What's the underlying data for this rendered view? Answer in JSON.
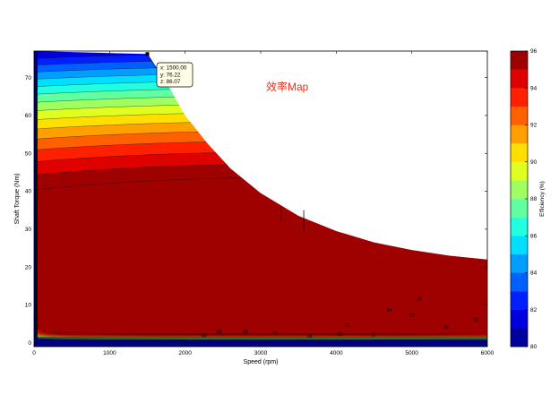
{
  "chart_data": {
    "type": "contour",
    "title": "效率Map",
    "xlabel": "Speed  (rpm)",
    "ylabel": "Shaft Torque  (Nm)",
    "xlim": [
      0,
      6000
    ],
    "ylim": [
      -1,
      77
    ],
    "xticks": [
      0,
      1000,
      2000,
      3000,
      4000,
      5000,
      6000
    ],
    "yticks": [
      0,
      10,
      20,
      30,
      40,
      50,
      60,
      70
    ],
    "grid": false,
    "colorbar": {
      "label": "Efficiency  (%)",
      "range": [
        80,
        96
      ],
      "ticks": [
        80,
        82,
        84,
        86,
        88,
        90,
        92,
        94,
        96
      ]
    },
    "contour_levels": [
      80,
      81,
      82,
      83,
      84,
      85,
      86,
      87,
      88,
      89,
      90,
      91,
      92,
      93,
      94,
      95,
      96
    ],
    "max_torque_curve": {
      "speed": [
        0,
        1500,
        1800,
        2000,
        2300,
        2600,
        3000,
        3500,
        4000,
        4500,
        5000,
        5500,
        6000
      ],
      "torque": [
        77,
        76.22,
        67,
        60,
        52.5,
        46,
        39.5,
        33.5,
        29.5,
        26.5,
        24.5,
        23,
        22
      ]
    },
    "contour_labels": [
      {
        "text": "86",
        "speed": 2250,
        "torque": 2
      },
      {
        "text": "88",
        "speed": 2450,
        "torque": 3
      },
      {
        "text": "88",
        "speed": 2800,
        "torque": 3
      },
      {
        "text": "87",
        "speed": 3200,
        "torque": 2.6
      },
      {
        "text": "88",
        "speed": 3650,
        "torque": 1.8
      },
      {
        "text": "86",
        "speed": 4050,
        "torque": 2.3
      },
      {
        "text": "87",
        "speed": 4500,
        "torque": 2.2
      },
      {
        "text": "91",
        "speed": 4150,
        "torque": 4.7
      },
      {
        "text": "94",
        "speed": 4700,
        "torque": 8.7
      },
      {
        "text": "93",
        "speed": 5000,
        "torque": 7.3
      },
      {
        "text": "95",
        "speed": 5100,
        "torque": 11.7
      },
      {
        "text": "90",
        "speed": 5450,
        "torque": 4.2
      },
      {
        "text": "92",
        "speed": 5850,
        "torque": 6.2
      }
    ],
    "datatip": {
      "x": "x: 1500.00",
      "y": "y: 76.22",
      "z": "z: 86.07",
      "speed": 1500,
      "torque": 76.22
    }
  }
}
